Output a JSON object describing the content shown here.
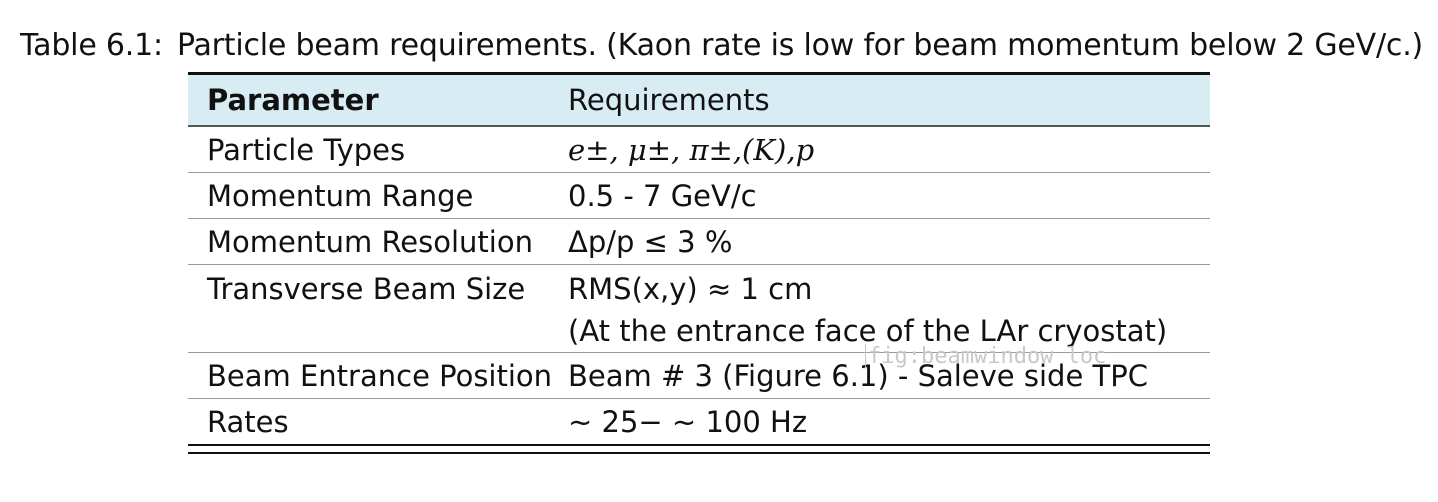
{
  "caption": {
    "label": "Table 6.1:",
    "text": "Particle beam requirements. (Kaon rate is low for beam momentum below 2 GeV/c.)"
  },
  "table": {
    "headers": [
      "Parameter",
      "Requirements"
    ],
    "rows": [
      {
        "parameter": "Particle Types",
        "requirement": "e±, μ±, π±,(K),p"
      },
      {
        "parameter": "Momentum Range",
        "requirement": "0.5 - 7 GeV/c"
      },
      {
        "parameter": "Momentum Resolution",
        "requirement": "Δp/p ≤ 3 %"
      },
      {
        "parameter": "Transverse Beam Size",
        "requirement": "RMS(x,y) ≈ 1 cm",
        "requirement_line2": "(At the entrance face of the LAr cryostat)"
      },
      {
        "parameter": "Beam Entrance Position",
        "requirement": "Beam # 3 (Figure 6.1) - Saleve side TPC"
      },
      {
        "parameter": "Rates",
        "requirement": "∼ 25− ∼ 100 Hz"
      }
    ]
  },
  "watermark": "fig:beamwindow loc",
  "colors": {
    "header_background": "#d8edf3",
    "text": "#111111"
  }
}
